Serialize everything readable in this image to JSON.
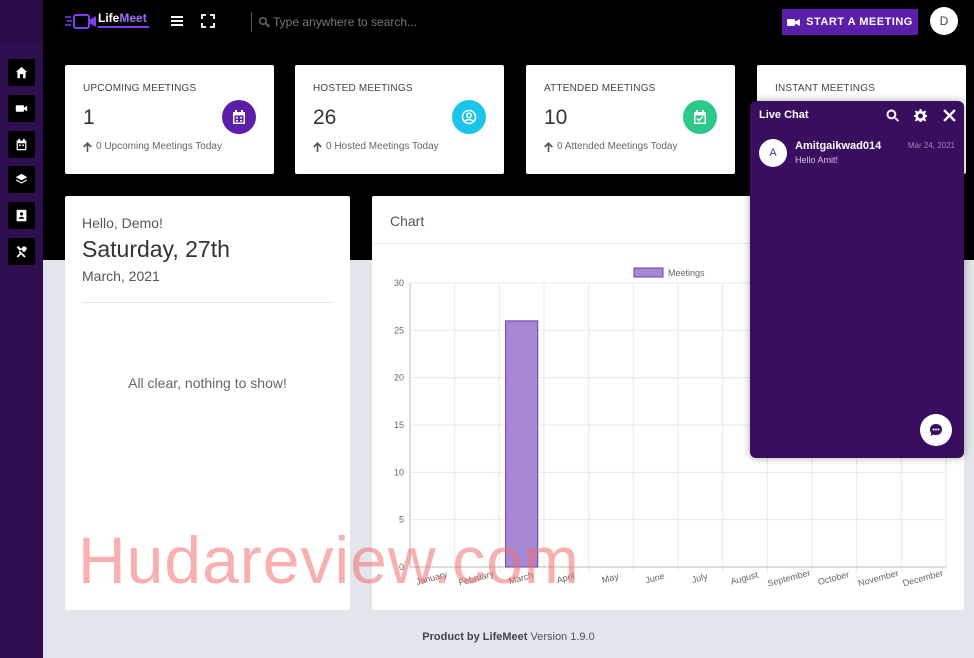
{
  "topbar": {
    "logo_text_a": "Life",
    "logo_text_b": "Meet",
    "search_placeholder": "Type anywhere to search...",
    "start_meeting_label": "START A MEETING",
    "avatar_initial": "D"
  },
  "sidebar": {
    "items": [
      {
        "icon": "home-icon"
      },
      {
        "icon": "camera-icon"
      },
      {
        "icon": "calendar-icon"
      },
      {
        "icon": "layers-icon"
      },
      {
        "icon": "contact-book-icon"
      },
      {
        "icon": "tools-icon"
      }
    ]
  },
  "stats": [
    {
      "label": "UPCOMING MEETINGS",
      "value": "1",
      "sub": "0 Upcoming Meetings Today",
      "icon": "calendar-icon",
      "color": "#5a1ea8"
    },
    {
      "label": "HOSTED MEETINGS",
      "value": "26",
      "sub": "0 Hosted Meetings Today",
      "icon": "user-circle-icon",
      "color": "#1bc5ea"
    },
    {
      "label": "ATTENDED MEETINGS",
      "value": "10",
      "sub": "0 Attended Meetings Today",
      "icon": "calendar-check-icon",
      "color": "#2ec98a"
    },
    {
      "label": "INSTANT MEETINGS",
      "value": "",
      "sub": "",
      "icon": "",
      "color": ""
    }
  ],
  "greeting": {
    "hello": "Hello, Demo!",
    "day": "Saturday, 27th",
    "month": "March, 2021",
    "empty": "All clear, nothing to show!"
  },
  "chart_card": {
    "title": "Chart"
  },
  "chart_data": {
    "type": "bar",
    "categories": [
      "January",
      "February",
      "March",
      "April",
      "May",
      "June",
      "July",
      "August",
      "September",
      "October",
      "November",
      "December"
    ],
    "series": [
      {
        "name": "Meetings",
        "values": [
          0,
          0,
          26,
          0,
          0,
          0,
          0,
          0,
          0,
          0,
          0,
          0
        ],
        "color": "#a688d4"
      }
    ],
    "yticks": [
      "0",
      "5",
      "10",
      "15",
      "20",
      "25",
      "30"
    ],
    "ylim": [
      0,
      30
    ],
    "grid": true,
    "legend": "top"
  },
  "chat": {
    "title": "Live Chat",
    "messages": [
      {
        "initial": "A",
        "name": "Amitgaikwad014",
        "text": "Hello Amit!",
        "date": "Mar 24, 2021"
      }
    ]
  },
  "footer": {
    "brand": "Product by LifeMeet",
    "version": "Version 1.9.0"
  },
  "watermark": "Hudareview.com"
}
